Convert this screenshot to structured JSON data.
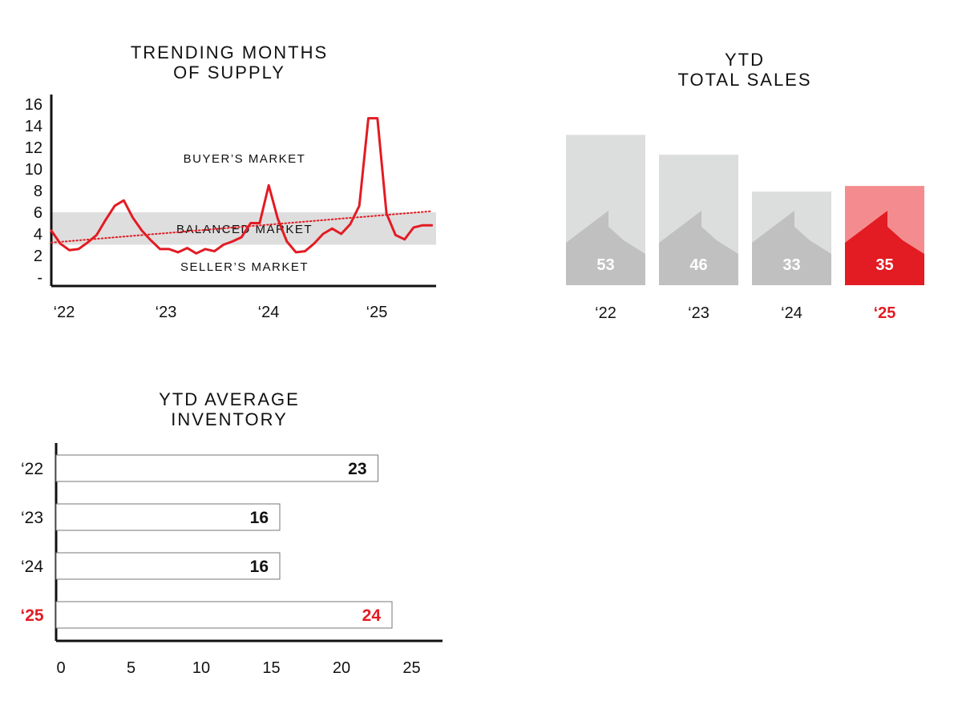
{
  "colors": {
    "accent": "#e31b23",
    "accent_light": "#f48c8f",
    "bar_gray": "#dcdddd",
    "house_gray": "#c0c0c0",
    "band_gray": "#dedede",
    "text": "#111111"
  },
  "chart_data": [
    {
      "type": "line",
      "title": "TRENDING MONTHS\nOF SUPPLY",
      "y_ticks": [
        "16",
        "14",
        "12",
        "10",
        "8",
        "6",
        "4",
        "2",
        "-"
      ],
      "ylim": [
        0,
        16
      ],
      "x_ticks": [
        "‘22",
        "‘23",
        "‘24",
        "‘25"
      ],
      "annotations": [
        "BUYER’S MARKET",
        "BALANCED MARKET",
        "SELLER’S MARKET"
      ],
      "balanced_band": [
        3,
        6
      ],
      "series": [
        {
          "style": "solid",
          "color": "#e31b23",
          "x": [
            "Jan 2022",
            "Feb 2022",
            "Mar 2022",
            "Apr 2022",
            "May 2022",
            "Jun 2022",
            "Jul 2022",
            "Aug 2022",
            "Sep 2022",
            "Oct 2022",
            "Nov 2022",
            "Dec 2022",
            "Jan 2023",
            "Feb 2023",
            "Mar 2023",
            "Apr 2023",
            "May 2023",
            "Jun 2023",
            "Jul 2023",
            "Aug 2023",
            "Sep 2023",
            "Oct 2023",
            "Nov 2023",
            "Dec 2023",
            "Jan 2024",
            "Feb 2024",
            "Mar 2024",
            "Apr 2024",
            "May 2024",
            "Jun 2024",
            "Jul 2024",
            "Aug 2024",
            "Sep 2024",
            "Oct 2024",
            "Nov 2024",
            "Dec 2024",
            "Jan 2025",
            "Feb 2025",
            "Mar 2025",
            "Apr 2025",
            "May 2025",
            "Jun 2025",
            "Jul 2025"
          ],
          "values": [
            4.3,
            3.1,
            2.5,
            2.6,
            3.2,
            3.9,
            5.3,
            6.6,
            7.1,
            5.5,
            4.3,
            3.4,
            2.6,
            2.6,
            2.3,
            2.7,
            2.2,
            2.6,
            2.4,
            3.0,
            3.3,
            3.7,
            5.0,
            5.0,
            8.5,
            5.4,
            3.3,
            2.3,
            2.4,
            3.1,
            4.0,
            4.5,
            4.0,
            4.9,
            6.6,
            14.7,
            14.7,
            5.9,
            3.9,
            3.5,
            4.6,
            4.8,
            4.8
          ]
        },
        {
          "style": "dotted",
          "color": "#e31b23",
          "x": [
            "Jan 2022",
            "Jul 2025"
          ],
          "values": [
            3.2,
            6.1
          ]
        }
      ]
    },
    {
      "type": "bar",
      "title": "YTD\nTOTAL SALES",
      "categories": [
        "‘22",
        "‘23",
        "‘24",
        "‘25"
      ],
      "values": [
        53,
        46,
        33,
        35
      ],
      "highlight": "‘25"
    },
    {
      "type": "bar",
      "orientation": "horizontal",
      "title": "YTD AVERAGE\nINVENTORY",
      "categories": [
        "‘22",
        "‘23",
        "‘24",
        "‘25"
      ],
      "values": [
        23,
        16,
        16,
        24
      ],
      "highlight": "‘25",
      "x_ticks": [
        "0",
        "5",
        "10",
        "15",
        "20",
        "25"
      ],
      "xlim": [
        0,
        27
      ]
    }
  ]
}
